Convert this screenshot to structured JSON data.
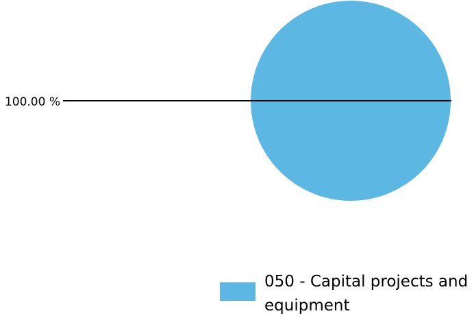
{
  "chart_data": {
    "type": "pie",
    "categories": [
      "050 - Capital projects and equipment"
    ],
    "values": [
      100.0
    ],
    "data_labels": [
      "100.00 %"
    ],
    "colors": [
      "#5cb7e2"
    ],
    "legend": "bottom-right"
  }
}
